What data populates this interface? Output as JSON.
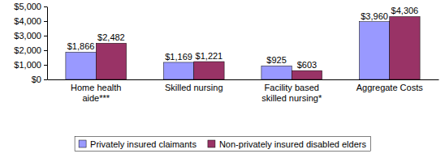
{
  "chart_data": {
    "type": "bar",
    "categories": [
      "Home health aide***",
      "Skilled nursing",
      "Facility based skilled nursing*",
      "Aggregate Costs"
    ],
    "series": [
      {
        "name": "Privately insured claimants",
        "color": "#9999ff",
        "values": [
          1866,
          1169,
          925,
          3960
        ],
        "value_labels": [
          "$1,866",
          "$1,169",
          "$925",
          "$3,960"
        ]
      },
      {
        "name": "Non-privately insured disabled elders",
        "color": "#993366",
        "values": [
          2482,
          1221,
          603,
          4306
        ],
        "value_labels": [
          "$2,482",
          "$1,221",
          "$603",
          "$4,306"
        ]
      }
    ],
    "ylim": [
      0,
      5000
    ],
    "yticks": [
      {
        "value": 0,
        "label": "$0"
      },
      {
        "value": 1000,
        "label": "$1,000"
      },
      {
        "value": 2000,
        "label": "$2,000"
      },
      {
        "value": 3000,
        "label": "$3,000"
      },
      {
        "value": 4000,
        "label": "$4,000"
      },
      {
        "value": 5000,
        "label": "$5,000"
      }
    ],
    "grid": false,
    "data_labels": true,
    "legend": "bottom"
  }
}
